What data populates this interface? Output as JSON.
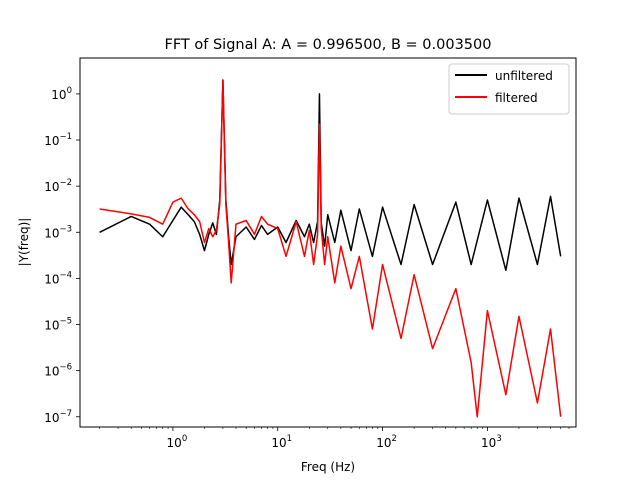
{
  "chart_data": {
    "type": "line",
    "title": "FFT of Signal A: A = 0.996500, B = 0.003500",
    "xlabel": "Freq (Hz)",
    "ylabel": "|Y(freq)|",
    "x_scale": "log",
    "y_scale": "log",
    "xlim": [
      0.13,
      7000
    ],
    "ylim": [
      6e-08,
      6
    ],
    "x_ticks": [
      {
        "value": 1,
        "mantissa": "10",
        "exp": "0"
      },
      {
        "value": 10,
        "mantissa": "10",
        "exp": "1"
      },
      {
        "value": 100,
        "mantissa": "10",
        "exp": "2"
      },
      {
        "value": 1000,
        "mantissa": "10",
        "exp": "3"
      }
    ],
    "y_ticks": [
      {
        "value": 1e-07,
        "mantissa": "10",
        "exp": "−7"
      },
      {
        "value": 1e-06,
        "mantissa": "10",
        "exp": "−6"
      },
      {
        "value": 1e-05,
        "mantissa": "10",
        "exp": "−5"
      },
      {
        "value": 0.0001,
        "mantissa": "10",
        "exp": "−4"
      },
      {
        "value": 0.001,
        "mantissa": "10",
        "exp": "−3"
      },
      {
        "value": 0.01,
        "mantissa": "10",
        "exp": "−2"
      },
      {
        "value": 0.1,
        "mantissa": "10",
        "exp": "−1"
      },
      {
        "value": 1,
        "mantissa": "10",
        "exp": "0"
      }
    ],
    "legend_position": "top-right",
    "series": [
      {
        "name": "unfiltered",
        "color": "#000000",
        "x": [
          0.2,
          0.4,
          0.6,
          0.8,
          1.0,
          1.2,
          1.4,
          1.6,
          1.8,
          2.0,
          2.2,
          2.4,
          2.6,
          2.8,
          3.0,
          3.2,
          3.4,
          3.6,
          4,
          5,
          6,
          7,
          8,
          10,
          12,
          15,
          18,
          20,
          22,
          24,
          25,
          26,
          28,
          30,
          35,
          40,
          50,
          60,
          80,
          100,
          150,
          200,
          300,
          500,
          700,
          1000,
          1500,
          2000,
          3000,
          4000,
          5000
        ],
        "y": [
          0.001,
          0.0022,
          0.0015,
          0.0008,
          0.0018,
          0.0035,
          0.0024,
          0.0017,
          0.0009,
          0.0004,
          0.0009,
          0.0016,
          0.0009,
          0.005,
          2.0,
          0.005,
          0.0008,
          0.0002,
          0.0008,
          0.0013,
          0.0007,
          0.0014,
          0.0009,
          0.0013,
          0.0006,
          0.0018,
          0.0008,
          0.0015,
          0.0006,
          0.0017,
          1.0,
          0.0016,
          0.0005,
          0.0024,
          0.0006,
          0.003,
          0.0004,
          0.0032,
          0.0003,
          0.0035,
          0.0002,
          0.004,
          0.0002,
          0.0045,
          0.0002,
          0.005,
          0.00015,
          0.0055,
          0.0002,
          0.006,
          0.0003
        ]
      },
      {
        "name": "filtered",
        "color": "#ff0000",
        "x": [
          0.2,
          0.4,
          0.6,
          0.8,
          1.0,
          1.2,
          1.4,
          1.6,
          1.8,
          2.0,
          2.2,
          2.4,
          2.6,
          2.8,
          3.0,
          3.2,
          3.4,
          3.6,
          4,
          5,
          6,
          7,
          8,
          10,
          12,
          15,
          18,
          20,
          22,
          24,
          25,
          26,
          28,
          30,
          35,
          40,
          50,
          60,
          80,
          100,
          150,
          200,
          300,
          500,
          700,
          800,
          1000,
          1500,
          2000,
          3000,
          4000,
          5000
        ],
        "y": [
          0.0032,
          0.0025,
          0.0021,
          0.0015,
          0.0045,
          0.0055,
          0.0032,
          0.0024,
          0.0017,
          0.0006,
          0.0012,
          0.0008,
          0.0011,
          0.004,
          2.0,
          0.004,
          0.0006,
          8e-05,
          0.0015,
          0.0018,
          0.0009,
          0.0022,
          0.0015,
          0.0012,
          0.0003,
          0.0017,
          0.0003,
          0.0011,
          0.0002,
          0.0009,
          0.22,
          0.0012,
          0.0002,
          0.0008,
          8e-05,
          0.0005,
          6e-05,
          0.0003,
          8e-06,
          0.0002,
          5e-06,
          0.00012,
          3e-06,
          6e-05,
          1.5e-06,
          1e-07,
          2e-05,
          3e-07,
          1.5e-05,
          2e-07,
          8e-06,
          1e-07
        ]
      }
    ]
  }
}
